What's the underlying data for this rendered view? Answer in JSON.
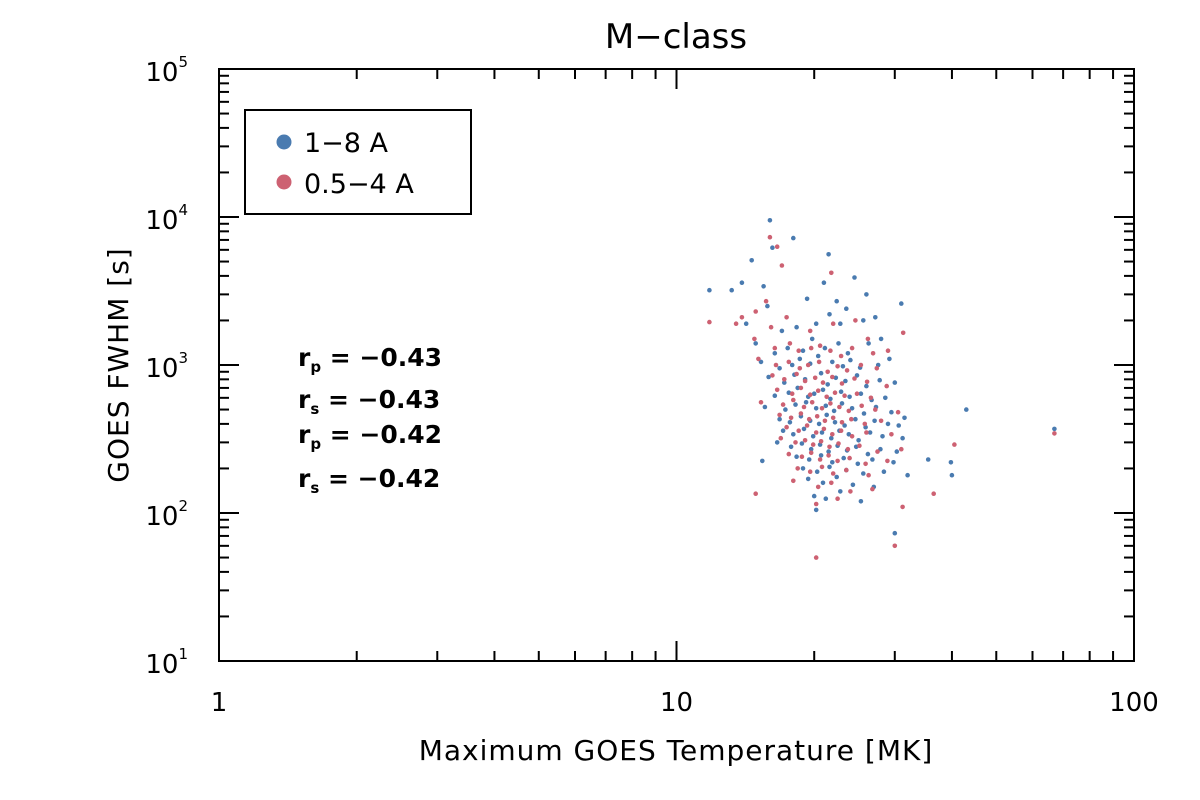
{
  "chart_data": {
    "type": "scatter",
    "title": "M−class",
    "xlabel": "Maximum GOES Temperature [MK]",
    "ylabel": "GOES FWHM [s]",
    "xscale": "log",
    "yscale": "log",
    "xlim": [
      1,
      100
    ],
    "ylim": [
      10,
      100000
    ],
    "x_ticks": [
      {
        "value": 1,
        "label": "1"
      },
      {
        "value": 10,
        "label": "10"
      },
      {
        "value": 100,
        "label": "100"
      }
    ],
    "y_ticks": [
      {
        "value": 10,
        "base": "10",
        "exp": "1"
      },
      {
        "value": 100,
        "base": "10",
        "exp": "2"
      },
      {
        "value": 1000,
        "base": "10",
        "exp": "3"
      },
      {
        "value": 10000,
        "base": "10",
        "exp": "4"
      },
      {
        "value": 100000,
        "base": "10",
        "exp": "5"
      }
    ],
    "legend": {
      "placement": "top-left",
      "entries": [
        {
          "label": "1−8 A",
          "color": "#4a7bb0"
        },
        {
          "label": "0.5−4 A",
          "color": "#cd6172"
        }
      ]
    },
    "annotations": [
      {
        "sym": "r",
        "sub": "p",
        "text": " =  −0.43",
        "color": "#4a7bb0"
      },
      {
        "sym": "r",
        "sub": "s",
        "text": " =  −0.43",
        "color": "#4a7bb0"
      },
      {
        "sym": "r",
        "sub": "p",
        "text": " =  −0.42",
        "color": "#cd6172"
      },
      {
        "sym": "r",
        "sub": "s",
        "text": " =  −0.42",
        "color": "#cd6172"
      }
    ],
    "series": [
      {
        "name": "1−8 A",
        "color": "#4a7bb0",
        "points": [
          [
            16.0,
            9500
          ],
          [
            18.0,
            7200
          ],
          [
            21.5,
            5600
          ],
          [
            16.2,
            6200
          ],
          [
            14.6,
            5100
          ],
          [
            13.9,
            3600
          ],
          [
            11.8,
            3200
          ],
          [
            13.2,
            3200
          ],
          [
            15.5,
            3400
          ],
          [
            15.8,
            2500
          ],
          [
            19.3,
            2800
          ],
          [
            21.0,
            3600
          ],
          [
            24.5,
            3900
          ],
          [
            26.0,
            3000
          ],
          [
            22.4,
            2700
          ],
          [
            23.5,
            2400
          ],
          [
            31.0,
            2600
          ],
          [
            14.2,
            1900
          ],
          [
            17.0,
            1700
          ],
          [
            18.3,
            1800
          ],
          [
            20.2,
            1900
          ],
          [
            21.6,
            2200
          ],
          [
            22.8,
            1900
          ],
          [
            25.6,
            2000
          ],
          [
            27.2,
            2100
          ],
          [
            28.0,
            1500
          ],
          [
            14.9,
            1400
          ],
          [
            16.4,
            1200
          ],
          [
            17.5,
            1300
          ],
          [
            18.9,
            1250
          ],
          [
            19.8,
            1500
          ],
          [
            21.1,
            1300
          ],
          [
            22.6,
            1400
          ],
          [
            23.7,
            1200
          ],
          [
            26.3,
            1400
          ],
          [
            15.3,
            1050
          ],
          [
            16.8,
            950
          ],
          [
            17.9,
            1000
          ],
          [
            18.6,
            1100
          ],
          [
            19.6,
            1020
          ],
          [
            20.4,
            1150
          ],
          [
            21.9,
            1050
          ],
          [
            23.1,
            980
          ],
          [
            24.0,
            1080
          ],
          [
            25.2,
            960
          ],
          [
            27.6,
            1000
          ],
          [
            29.2,
            1100
          ],
          [
            15.9,
            830
          ],
          [
            17.2,
            760
          ],
          [
            18.1,
            860
          ],
          [
            19.1,
            800
          ],
          [
            20.7,
            880
          ],
          [
            21.4,
            740
          ],
          [
            22.3,
            820
          ],
          [
            23.4,
            780
          ],
          [
            24.8,
            850
          ],
          [
            26.0,
            720
          ],
          [
            27.8,
            790
          ],
          [
            30.0,
            760
          ],
          [
            16.4,
            620
          ],
          [
            17.6,
            650
          ],
          [
            18.4,
            700
          ],
          [
            19.4,
            610
          ],
          [
            20.0,
            640
          ],
          [
            20.9,
            680
          ],
          [
            21.7,
            590
          ],
          [
            22.9,
            660
          ],
          [
            23.9,
            610
          ],
          [
            25.3,
            640
          ],
          [
            26.7,
            580
          ],
          [
            28.6,
            600
          ],
          [
            15.6,
            520
          ],
          [
            17.3,
            500
          ],
          [
            18.2,
            540
          ],
          [
            19.2,
            560
          ],
          [
            20.2,
            510
          ],
          [
            21.2,
            530
          ],
          [
            22.1,
            490
          ],
          [
            23.0,
            550
          ],
          [
            24.2,
            510
          ],
          [
            25.7,
            470
          ],
          [
            27.3,
            520
          ],
          [
            29.5,
            480
          ],
          [
            31.5,
            440
          ],
          [
            43.0,
            500
          ],
          [
            16.8,
            430
          ],
          [
            17.7,
            410
          ],
          [
            18.7,
            450
          ],
          [
            19.6,
            420
          ],
          [
            20.5,
            400
          ],
          [
            21.3,
            460
          ],
          [
            22.2,
            410
          ],
          [
            23.3,
            390
          ],
          [
            24.6,
            430
          ],
          [
            25.9,
            380
          ],
          [
            27.1,
            420
          ],
          [
            29.0,
            400
          ],
          [
            30.6,
            390
          ],
          [
            17.1,
            360
          ],
          [
            18.0,
            340
          ],
          [
            19.0,
            370
          ],
          [
            19.9,
            330
          ],
          [
            20.8,
            350
          ],
          [
            21.8,
            320
          ],
          [
            22.7,
            360
          ],
          [
            23.8,
            340
          ],
          [
            25.0,
            310
          ],
          [
            26.5,
            350
          ],
          [
            28.2,
            330
          ],
          [
            31.2,
            320
          ],
          [
            16.6,
            300
          ],
          [
            17.8,
            280
          ],
          [
            18.8,
            295
          ],
          [
            19.7,
            270
          ],
          [
            20.6,
            290
          ],
          [
            21.5,
            260
          ],
          [
            22.5,
            285
          ],
          [
            23.6,
            265
          ],
          [
            24.7,
            280
          ],
          [
            26.2,
            250
          ],
          [
            27.9,
            270
          ],
          [
            30.3,
            260
          ],
          [
            18.3,
            240
          ],
          [
            19.5,
            230
          ],
          [
            20.7,
            245
          ],
          [
            21.9,
            220
          ],
          [
            23.2,
            235
          ],
          [
            24.9,
            215
          ],
          [
            26.8,
            230
          ],
          [
            29.8,
            220
          ],
          [
            35.5,
            230
          ],
          [
            39.8,
            220
          ],
          [
            15.4,
            225
          ],
          [
            18.9,
            200
          ],
          [
            20.3,
            190
          ],
          [
            21.6,
            205
          ],
          [
            23.5,
            195
          ],
          [
            25.6,
            185
          ],
          [
            28.4,
            190
          ],
          [
            32.0,
            180
          ],
          [
            40.0,
            180
          ],
          [
            19.4,
            170
          ],
          [
            20.9,
            160
          ],
          [
            22.4,
            175
          ],
          [
            24.3,
            155
          ],
          [
            27.0,
            150
          ],
          [
            20.0,
            130
          ],
          [
            21.2,
            125
          ],
          [
            22.8,
            140
          ],
          [
            25.3,
            120
          ],
          [
            20.2,
            105
          ],
          [
            30.0,
            73
          ],
          [
            67.0,
            370
          ]
        ]
      },
      {
        "name": "0.5−4 A",
        "color": "#cd6172",
        "points": [
          [
            16.0,
            7300
          ],
          [
            16.6,
            6300
          ],
          [
            17.0,
            4700
          ],
          [
            21.8,
            4200
          ],
          [
            15.7,
            2700
          ],
          [
            14.9,
            2300
          ],
          [
            11.8,
            1950
          ],
          [
            13.9,
            2100
          ],
          [
            16.1,
            1800
          ],
          [
            17.4,
            2100
          ],
          [
            19.6,
            1700
          ],
          [
            22.0,
            1900
          ],
          [
            24.6,
            2000
          ],
          [
            26.2,
            1500
          ],
          [
            31.3,
            1650
          ],
          [
            13.5,
            1900
          ],
          [
            14.8,
            1500
          ],
          [
            16.4,
            1300
          ],
          [
            17.7,
            1400
          ],
          [
            18.5,
            1250
          ],
          [
            19.7,
            1300
          ],
          [
            20.6,
            1350
          ],
          [
            21.7,
            1250
          ],
          [
            22.9,
            1150
          ],
          [
            24.2,
            1300
          ],
          [
            26.9,
            1200
          ],
          [
            29.0,
            1250
          ],
          [
            15.1,
            1100
          ],
          [
            16.5,
            1000
          ],
          [
            17.6,
            1050
          ],
          [
            18.6,
            950
          ],
          [
            19.4,
            1000
          ],
          [
            20.5,
            1050
          ],
          [
            21.4,
            900
          ],
          [
            22.5,
            980
          ],
          [
            23.6,
            920
          ],
          [
            25.3,
            1000
          ],
          [
            27.4,
            950
          ],
          [
            16.2,
            850
          ],
          [
            17.2,
            800
          ],
          [
            18.3,
            870
          ],
          [
            19.1,
            780
          ],
          [
            20.1,
            820
          ],
          [
            20.9,
            760
          ],
          [
            21.9,
            830
          ],
          [
            23.0,
            750
          ],
          [
            24.5,
            810
          ],
          [
            26.1,
            770
          ],
          [
            28.8,
            720
          ],
          [
            16.6,
            680
          ],
          [
            17.9,
            640
          ],
          [
            18.7,
            700
          ],
          [
            19.6,
            630
          ],
          [
            20.4,
            670
          ],
          [
            21.3,
            610
          ],
          [
            22.2,
            650
          ],
          [
            23.3,
            620
          ],
          [
            24.8,
            640
          ],
          [
            26.6,
            600
          ],
          [
            15.3,
            560
          ],
          [
            17.1,
            540
          ],
          [
            18.0,
            580
          ],
          [
            19.0,
            520
          ],
          [
            19.8,
            560
          ],
          [
            20.8,
            510
          ],
          [
            21.7,
            550
          ],
          [
            22.7,
            520
          ],
          [
            23.8,
            490
          ],
          [
            25.4,
            530
          ],
          [
            27.2,
            500
          ],
          [
            30.5,
            480
          ],
          [
            16.8,
            460
          ],
          [
            17.8,
            440
          ],
          [
            18.7,
            470
          ],
          [
            19.5,
            430
          ],
          [
            20.3,
            450
          ],
          [
            21.1,
            420
          ],
          [
            22.0,
            440
          ],
          [
            23.0,
            410
          ],
          [
            24.1,
            430
          ],
          [
            25.8,
            400
          ],
          [
            28.0,
            420
          ],
          [
            17.4,
            380
          ],
          [
            18.5,
            360
          ],
          [
            19.3,
            390
          ],
          [
            20.2,
            350
          ],
          [
            21.0,
            370
          ],
          [
            21.9,
            340
          ],
          [
            22.9,
            360
          ],
          [
            24.2,
            330
          ],
          [
            26.0,
            350
          ],
          [
            29.5,
            340
          ],
          [
            40.5,
            290
          ],
          [
            16.9,
            320
          ],
          [
            18.2,
            300
          ],
          [
            19.1,
            310
          ],
          [
            19.9,
            290
          ],
          [
            20.7,
            305
          ],
          [
            21.6,
            280
          ],
          [
            22.6,
            295
          ],
          [
            23.7,
            270
          ],
          [
            25.1,
            285
          ],
          [
            27.5,
            260
          ],
          [
            31.0,
            270
          ],
          [
            17.6,
            250
          ],
          [
            18.8,
            240
          ],
          [
            19.7,
            255
          ],
          [
            20.6,
            230
          ],
          [
            21.5,
            245
          ],
          [
            22.5,
            225
          ],
          [
            23.9,
            235
          ],
          [
            25.9,
            215
          ],
          [
            28.9,
            225
          ],
          [
            18.4,
            200
          ],
          [
            19.6,
            190
          ],
          [
            20.8,
            205
          ],
          [
            22.0,
            185
          ],
          [
            23.5,
            195
          ],
          [
            26.3,
            180
          ],
          [
            14.9,
            135
          ],
          [
            18.0,
            165
          ],
          [
            20.4,
            150
          ],
          [
            21.8,
            160
          ],
          [
            24.0,
            140
          ],
          [
            26.8,
            145
          ],
          [
            31.2,
            110
          ],
          [
            36.5,
            135
          ],
          [
            20.2,
            115
          ],
          [
            22.5,
            125
          ],
          [
            30.0,
            60
          ],
          [
            20.2,
            50
          ],
          [
            67.0,
            345
          ]
        ]
      }
    ]
  }
}
